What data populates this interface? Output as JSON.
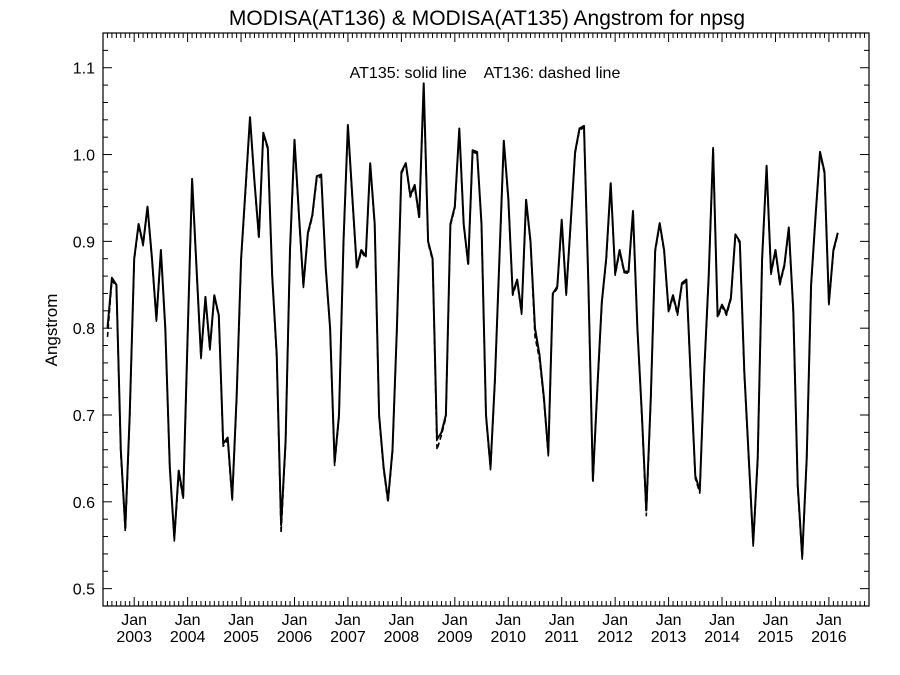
{
  "chart_data": {
    "type": "line",
    "title": "MODISA(AT136) & MODISA(AT135)  Angstrom for npsg",
    "annotation": "AT135: solid line    AT136: dashed line",
    "xlabel": "",
    "ylabel": "Angstrom",
    "x_start": "2002-07",
    "xlim": [
      "2002-06",
      "2016-10"
    ],
    "ylim": [
      0.48,
      1.14
    ],
    "y_ticks": [
      0.5,
      0.6,
      0.7,
      0.8,
      0.9,
      1.0,
      1.1
    ],
    "y_tick_labels": [
      "0.5",
      "0.6",
      "0.7",
      "0.8",
      "0.9",
      "1.0",
      "1.1"
    ],
    "x_ticks": [
      "2003-01",
      "2004-01",
      "2005-01",
      "2006-01",
      "2007-01",
      "2008-01",
      "2009-01",
      "2010-01",
      "2011-01",
      "2012-01",
      "2013-01",
      "2014-01",
      "2015-01",
      "2016-01"
    ],
    "x_tick_month_label": "Jan",
    "x_tick_year_labels": [
      "2003",
      "2004",
      "2005",
      "2006",
      "2007",
      "2008",
      "2009",
      "2010",
      "2011",
      "2012",
      "2013",
      "2014",
      "2015",
      "2016"
    ],
    "grid": false,
    "color": "#000000",
    "series": [
      {
        "name": "AT135",
        "style": "solid",
        "values": [
          0.8,
          0.858,
          0.85,
          0.66,
          0.57,
          0.7,
          0.88,
          0.92,
          0.897,
          0.94,
          0.88,
          0.81,
          0.89,
          0.8,
          0.64,
          0.558,
          0.636,
          0.606,
          0.79,
          0.972,
          0.87,
          0.767,
          0.836,
          0.777,
          0.838,
          0.815,
          0.667,
          0.674,
          0.604,
          0.72,
          0.88,
          0.96,
          1.043,
          0.97,
          0.905,
          1.025,
          1.008,
          0.86,
          0.77,
          0.573,
          0.67,
          0.89,
          1.017,
          0.93,
          0.849,
          0.91,
          0.93,
          0.975,
          0.977,
          0.87,
          0.8,
          0.645,
          0.7,
          0.9,
          1.034,
          0.95,
          0.87,
          0.89,
          0.883,
          0.99,
          0.92,
          0.7,
          0.64,
          0.602,
          0.66,
          0.8,
          0.98,
          0.99,
          0.953,
          0.965,
          0.928,
          1.082,
          0.9,
          0.88,
          0.672,
          0.68,
          0.7,
          0.92,
          0.94,
          1.03,
          0.92,
          0.874,
          1.005,
          1.003,
          0.92,
          0.7,
          0.64,
          0.74,
          0.88,
          1.016,
          0.95,
          0.84,
          0.856,
          0.818,
          0.948,
          0.9,
          0.8,
          0.77,
          0.72,
          0.656,
          0.84,
          0.848,
          0.925,
          0.84,
          0.92,
          1.003,
          1.03,
          1.033,
          0.85,
          0.625,
          0.73,
          0.83,
          0.88,
          0.967,
          0.863,
          0.89,
          0.866,
          0.865,
          0.935,
          0.8,
          0.7,
          0.59,
          0.72,
          0.89,
          0.921,
          0.89,
          0.82,
          0.838,
          0.817,
          0.852,
          0.856,
          0.74,
          0.63,
          0.613,
          0.75,
          0.86,
          1.006,
          0.814,
          0.827,
          0.817,
          0.835,
          0.908,
          0.9,
          0.75,
          0.65,
          0.552,
          0.65,
          0.88,
          0.987,
          0.864,
          0.89,
          0.852,
          0.873,
          0.916,
          0.82,
          0.62,
          0.537,
          0.65,
          0.85,
          0.93,
          1.003,
          0.98,
          0.829,
          0.89,
          0.91
        ]
      },
      {
        "name": "AT136",
        "style": "dashed",
        "values": [
          0.79,
          0.855,
          0.848,
          0.655,
          0.566,
          0.695,
          0.878,
          0.918,
          0.895,
          0.938,
          0.878,
          0.808,
          0.888,
          0.798,
          0.637,
          0.555,
          0.633,
          0.603,
          0.788,
          0.97,
          0.868,
          0.765,
          0.834,
          0.775,
          0.836,
          0.813,
          0.664,
          0.671,
          0.601,
          0.718,
          0.878,
          0.958,
          1.041,
          0.968,
          0.903,
          1.023,
          1.006,
          0.858,
          0.767,
          0.564,
          0.667,
          0.888,
          1.015,
          0.928,
          0.847,
          0.908,
          0.928,
          0.972,
          0.975,
          0.868,
          0.798,
          0.642,
          0.697,
          0.898,
          1.032,
          0.948,
          0.868,
          0.888,
          0.881,
          0.988,
          0.918,
          0.697,
          0.637,
          0.599,
          0.657,
          0.798,
          0.978,
          0.988,
          0.951,
          0.963,
          0.926,
          1.078,
          0.898,
          0.878,
          0.66,
          0.677,
          0.697,
          0.918,
          0.938,
          1.028,
          0.918,
          0.872,
          1.003,
          1.001,
          0.918,
          0.697,
          0.637,
          0.738,
          0.878,
          1.014,
          0.948,
          0.838,
          0.854,
          0.816,
          0.946,
          0.898,
          0.79,
          0.765,
          0.717,
          0.653,
          0.838,
          0.846,
          0.923,
          0.838,
          0.918,
          1.001,
          1.028,
          1.031,
          0.848,
          0.622,
          0.727,
          0.828,
          0.878,
          0.965,
          0.861,
          0.888,
          0.864,
          0.863,
          0.933,
          0.798,
          0.697,
          0.584,
          0.717,
          0.888,
          0.919,
          0.888,
          0.818,
          0.836,
          0.815,
          0.85,
          0.854,
          0.737,
          0.627,
          0.61,
          0.747,
          0.858,
          1.008,
          0.812,
          0.825,
          0.815,
          0.833,
          0.906,
          0.898,
          0.747,
          0.647,
          0.549,
          0.647,
          0.878,
          0.985,
          0.862,
          0.888,
          0.85,
          0.871,
          0.914,
          0.818,
          0.617,
          0.534,
          0.647,
          0.848,
          0.928,
          1.001,
          0.978,
          0.827,
          0.888,
          0.908
        ]
      }
    ]
  }
}
